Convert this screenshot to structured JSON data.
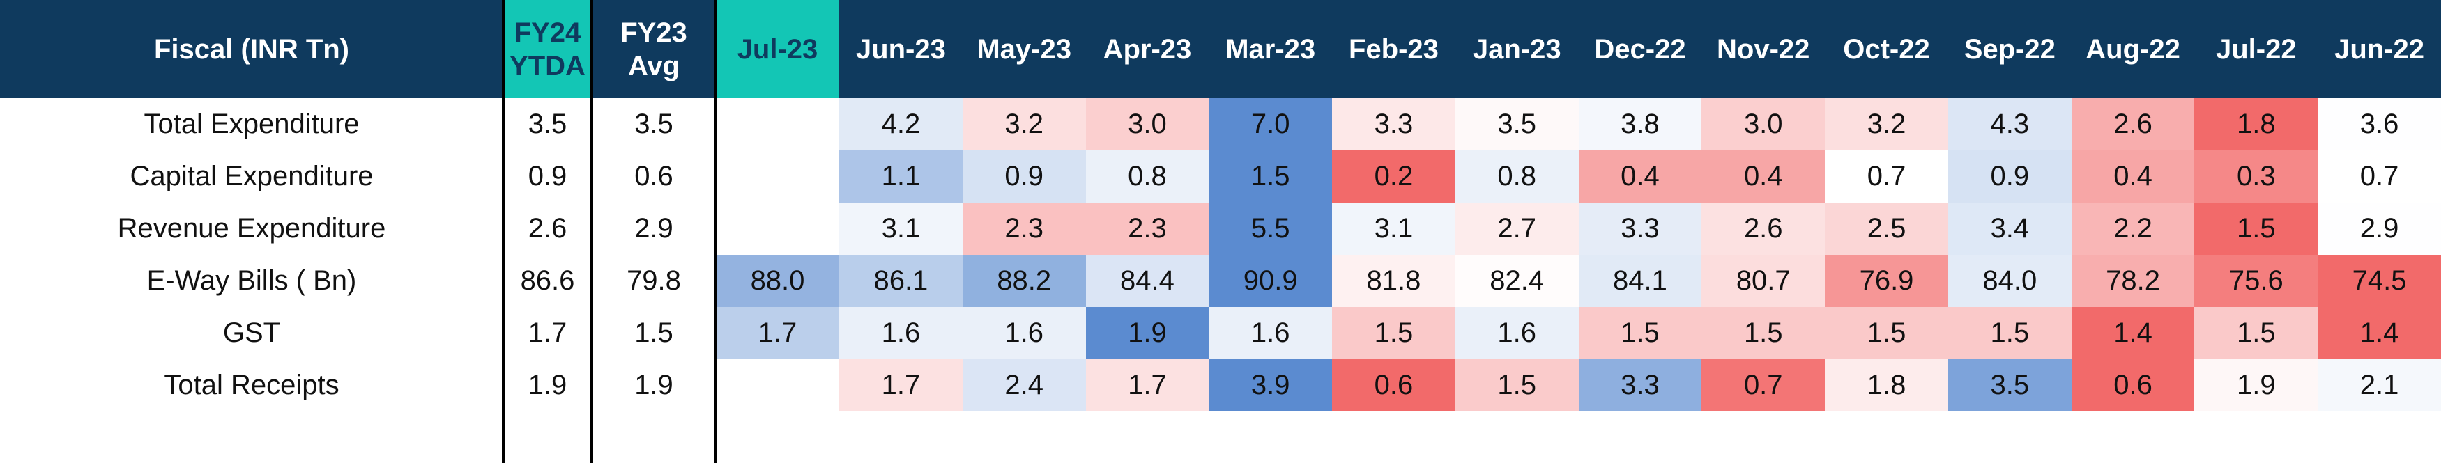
{
  "table": {
    "columns": [
      "Fiscal  (INR Tn)",
      "FY24 YTDA",
      "FY23 Avg",
      "Jul-23",
      "Jun-23",
      "May-23",
      "Apr-23",
      "Mar-23",
      "Feb-23",
      "Jan-23",
      "Dec-22",
      "Nov-22",
      "Oct-22",
      "Sep-22",
      "Aug-22",
      "Jul-22",
      "Jun-22"
    ],
    "rows": [
      {
        "label": "Total Expenditure",
        "cells": [
          "3.5",
          "3.5",
          null,
          "4.2",
          "3.2",
          "3.0",
          "7.0",
          "3.3",
          "3.5",
          "3.8",
          "3.0",
          "3.2",
          "4.3",
          "2.6",
          "1.8",
          "3.6"
        ]
      },
      {
        "label": "Capital Expenditure",
        "cells": [
          "0.9",
          "0.6",
          null,
          "1.1",
          "0.9",
          "0.8",
          "1.5",
          "0.2",
          "0.8",
          "0.4",
          "0.4",
          "0.7",
          "0.9",
          "0.4",
          "0.3",
          "0.7"
        ]
      },
      {
        "label": "Revenue Expenditure",
        "cells": [
          "2.6",
          "2.9",
          null,
          "3.1",
          "2.3",
          "2.3",
          "5.5",
          "3.1",
          "2.7",
          "3.3",
          "2.6",
          "2.5",
          "3.4",
          "2.2",
          "1.5",
          "2.9"
        ]
      },
      {
        "label": "E-Way Bills ( Bn)",
        "cells": [
          "86.6",
          "79.8",
          "88.0",
          "86.1",
          "88.2",
          "84.4",
          "90.9",
          "81.8",
          "82.4",
          "84.1",
          "80.7",
          "76.9",
          "84.0",
          "78.2",
          "75.6",
          "74.5"
        ]
      },
      {
        "label": "GST",
        "cells": [
          "1.7",
          "1.5",
          "1.7",
          "1.6",
          "1.6",
          "1.9",
          "1.6",
          "1.5",
          "1.6",
          "1.5",
          "1.5",
          "1.5",
          "1.5",
          "1.4",
          "1.5",
          "1.4"
        ]
      },
      {
        "label": "Total Receipts",
        "cells": [
          "1.9",
          "1.9",
          null,
          "1.7",
          "2.4",
          "1.7",
          "3.9",
          "0.6",
          "1.5",
          "3.3",
          "0.7",
          "1.8",
          "3.5",
          "0.6",
          "1.9",
          "2.1"
        ]
      }
    ]
  }
}
